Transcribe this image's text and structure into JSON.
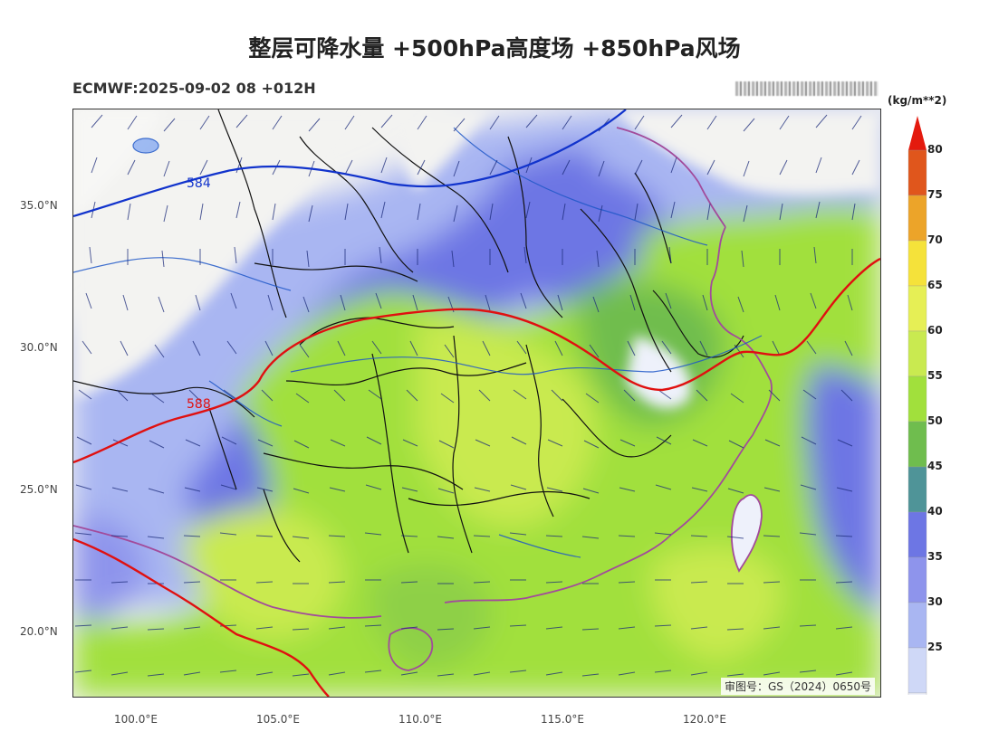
{
  "title": "整层可降水量 +500hPa高度场 +850hPa风场",
  "subtitle": "ECMWF:2025-09-02 08 +012H",
  "approval_text": "审图号：GS（2024）0650号",
  "latitude_labels": [
    "35.0°N",
    "30.0°N",
    "25.0°N",
    "20.0°N"
  ],
  "longitude_labels": [
    "100.0°E",
    "105.0°E",
    "110.0°E",
    "115.0°E",
    "120.0°E"
  ],
  "colorbar": {
    "unit": "(kg/m**2)",
    "ticks": [
      "80",
      "75",
      "70",
      "65",
      "60",
      "55",
      "50",
      "45",
      "40",
      "35",
      "30",
      "25"
    ],
    "colors": [
      "#e0561c",
      "#eca429",
      "#f5e23a",
      "#e6ef55",
      "#c9ea50",
      "#a1e03c",
      "#6fbd4e",
      "#4f9498",
      "#6d76e4",
      "#8e94ec",
      "#a9b6f2",
      "#cfd8f7",
      "#eef1fb"
    ],
    "top_color": "#e41a0e"
  },
  "contours": {
    "c584": {
      "label": "584",
      "color": "#1133cc"
    },
    "c588": {
      "label": "588",
      "color": "#e01010"
    }
  },
  "colors": {
    "land_dry": "#f3f3f1",
    "border_province": "#111111",
    "border_coast": "#a24b9b",
    "river": "#1f57c8"
  }
}
